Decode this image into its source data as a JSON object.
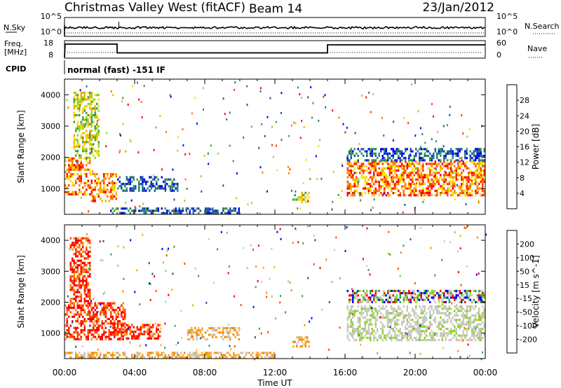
{
  "header": {
    "title": "Christmas Valley West (fitACF)",
    "beam": "Beam 14",
    "date": "23/Jan/2012"
  },
  "strips": {
    "nsky_label": "N.Sky",
    "nsky_ticks": [
      "10^5",
      "10^0"
    ],
    "nsearch_label": "N.Search",
    "nsearch_ticks": [
      "10^5",
      "10^0"
    ],
    "freq_label": "Freq.",
    "freq_unit": "[MHz]",
    "freq_ticks": [
      "18",
      "8"
    ],
    "nave_label": "Nave",
    "nave_ticks": [
      "60",
      "0"
    ],
    "cpid_label": "CPID",
    "cpid_text": "normal (fast) -151 IF",
    "freq_series_hours": [
      0,
      0.03,
      3.0,
      3.0,
      15.0,
      15.0,
      24
    ],
    "freq_series_mhz": [
      8.5,
      16.0,
      16.0,
      11.0,
      11.0,
      15.6,
      15.6
    ]
  },
  "chart_data": [
    {
      "type": "heatmap",
      "panel": "power",
      "ylabel": "Slant Range [km]",
      "xlabel": "",
      "x_ticks": [
        "00:00",
        "04:00",
        "08:00",
        "12:00",
        "16:00",
        "20:00",
        "00:00"
      ],
      "y_ticks": [
        "1000",
        "2000",
        "3000",
        "4000"
      ],
      "ylim": [
        180,
        4500
      ],
      "colorbar": {
        "label": "Power [dB]",
        "ticks": [
          "28",
          "24",
          "20",
          "16",
          "12",
          "8",
          "4"
        ],
        "range": [
          0,
          30
        ],
        "colors": [
          "#0000ff",
          "#1f4fa8",
          "#2b7a84",
          "#3c9a4d",
          "#8ed420",
          "#f2e300",
          "#f9b000",
          "#ff7a00",
          "#ff3a00",
          "#ff0000"
        ]
      },
      "regions": [
        {
          "t0": 0.0,
          "t1": 1.5,
          "r0": 800,
          "r1": 2000,
          "level": "high"
        },
        {
          "t0": 1.5,
          "t1": 3.0,
          "r0": 600,
          "r1": 1500,
          "level": "high"
        },
        {
          "t0": 0.5,
          "t1": 2.0,
          "r0": 2000,
          "r1": 4100,
          "level": "medium"
        },
        {
          "t0": 3.0,
          "t1": 6.5,
          "r0": 900,
          "r1": 1400,
          "level": "low"
        },
        {
          "t0": 2.5,
          "t1": 10.0,
          "r0": 200,
          "r1": 400,
          "level": "low"
        },
        {
          "t0": 13.0,
          "t1": 14.0,
          "r0": 600,
          "r1": 900,
          "level": "medium"
        },
        {
          "t0": 16.1,
          "t1": 24.0,
          "r0": 800,
          "r1": 1900,
          "level": "high"
        },
        {
          "t0": 16.1,
          "t1": 24.0,
          "r0": 1900,
          "r1": 2300,
          "level": "low"
        }
      ]
    },
    {
      "type": "heatmap",
      "panel": "velocity",
      "ylabel": "Slant Range [km]",
      "xlabel": "Time UT",
      "x_ticks": [
        "00:00",
        "04:00",
        "08:00",
        "12:00",
        "16:00",
        "20:00",
        "00:00"
      ],
      "y_ticks": [
        "1000",
        "2000",
        "3000",
        "4000"
      ],
      "ylim": [
        180,
        4500
      ],
      "colorbar": {
        "label": "Velocity [m s^-1]",
        "ticks": [
          "200",
          "100",
          "50",
          "15",
          "-15",
          "-50",
          "-100",
          "-200"
        ],
        "range": [
          -250,
          250
        ],
        "colors": [
          "#ff0000",
          "#ff4a00",
          "#ff8800",
          "#ffaa22",
          "#c8c8c0",
          "#c8c8c0",
          "#8ed420",
          "#3ca04a",
          "#1f50a8",
          "#0000ff"
        ]
      },
      "regions": [
        {
          "t0": 0.0,
          "t1": 3.5,
          "r0": 800,
          "r1": 2000,
          "level": "negative"
        },
        {
          "t0": 0.3,
          "t1": 1.5,
          "r0": 2000,
          "r1": 4100,
          "level": "negative"
        },
        {
          "t0": 3.0,
          "t1": 5.5,
          "r0": 800,
          "r1": 1300,
          "level": "negative"
        },
        {
          "t0": 7.0,
          "t1": 10.0,
          "r0": 800,
          "r1": 1200,
          "level": "slight-negative"
        },
        {
          "t0": 0.0,
          "t1": 12.0,
          "r0": 200,
          "r1": 400,
          "level": "slight-negative"
        },
        {
          "t0": 13.0,
          "t1": 14.0,
          "r0": 600,
          "r1": 900,
          "level": "slight-negative"
        },
        {
          "t0": 16.1,
          "t1": 24.0,
          "r0": 800,
          "r1": 1900,
          "level": "near-zero"
        },
        {
          "t0": 16.1,
          "t1": 24.0,
          "r0": 2000,
          "r1": 2400,
          "level": "mixed"
        }
      ]
    }
  ]
}
